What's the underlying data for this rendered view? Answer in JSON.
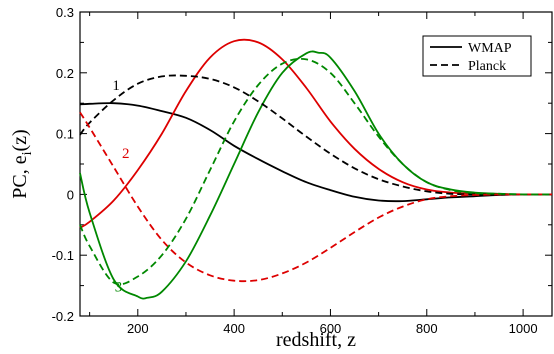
{
  "chart_data": {
    "type": "line",
    "xlabel": "redshift, z",
    "ylabel": "PC, e",
    "ylabel_sub": "i",
    "ylabel_suffix": "(z)",
    "xlim": [
      80,
      1060
    ],
    "ylim": [
      -0.2,
      0.3
    ],
    "xticks": [
      200,
      400,
      600,
      800,
      1000
    ],
    "yticks": [
      -0.2,
      -0.1,
      0,
      0.1,
      0.2,
      0.3
    ],
    "ytick_labels": [
      "-0.2",
      "-0.1",
      "0",
      "0.1",
      "0.2",
      "0.3"
    ],
    "legend": {
      "position": "top-right",
      "entries": [
        {
          "label": "WMAP",
          "style": "solid"
        },
        {
          "label": "Planck",
          "style": "dashed"
        }
      ]
    },
    "annotations": [
      {
        "text": "1",
        "x": 155,
        "y": 0.172,
        "color": "#000000"
      },
      {
        "text": "2",
        "x": 175,
        "y": 0.06,
        "color": "#dd0000"
      },
      {
        "text": "3",
        "x": 160,
        "y": -0.16,
        "color": "#008800"
      }
    ],
    "series": [
      {
        "pc": 1,
        "dataset": "WMAP",
        "style": "solid",
        "color": "#000000",
        "x": [
          80,
          100,
          150,
          200,
          250,
          300,
          350,
          400,
          450,
          500,
          550,
          600,
          650,
          700,
          750,
          800,
          850,
          900,
          950,
          1000,
          1060
        ],
        "y": [
          0.148,
          0.149,
          0.15,
          0.146,
          0.137,
          0.126,
          0.106,
          0.08,
          0.058,
          0.038,
          0.02,
          0.007,
          -0.004,
          -0.01,
          -0.011,
          -0.008,
          -0.005,
          -0.003,
          -0.001,
          0,
          0
        ]
      },
      {
        "pc": 2,
        "dataset": "WMAP",
        "style": "solid",
        "color": "#dd0000",
        "x": [
          80,
          100,
          150,
          200,
          250,
          300,
          350,
          400,
          450,
          500,
          550,
          600,
          650,
          700,
          750,
          800,
          850,
          900,
          950,
          1000,
          1060
        ],
        "y": [
          -0.055,
          -0.045,
          -0.01,
          0.04,
          0.1,
          0.17,
          0.225,
          0.252,
          0.25,
          0.222,
          0.175,
          0.12,
          0.075,
          0.042,
          0.02,
          0.008,
          0.003,
          0.001,
          0,
          0,
          0
        ]
      },
      {
        "pc": 3,
        "dataset": "WMAP",
        "style": "solid",
        "color": "#008800",
        "x": [
          80,
          100,
          150,
          200,
          220,
          250,
          300,
          350,
          400,
          450,
          500,
          550,
          575,
          600,
          650,
          700,
          750,
          800,
          850,
          900,
          950,
          1000,
          1060
        ],
        "y": [
          0.035,
          -0.03,
          -0.14,
          -0.168,
          -0.17,
          -0.16,
          -0.11,
          -0.035,
          0.05,
          0.135,
          0.2,
          0.232,
          0.233,
          0.225,
          0.17,
          0.1,
          0.05,
          0.02,
          0.008,
          0.003,
          0.001,
          0,
          0
        ]
      },
      {
        "pc": 1,
        "dataset": "Planck",
        "style": "dashed",
        "color": "#000000",
        "x": [
          80,
          100,
          150,
          200,
          250,
          300,
          350,
          400,
          450,
          500,
          550,
          600,
          650,
          700,
          750,
          800,
          850,
          900,
          950,
          1000,
          1060
        ],
        "y": [
          0.098,
          0.118,
          0.155,
          0.182,
          0.194,
          0.195,
          0.19,
          0.176,
          0.153,
          0.125,
          0.095,
          0.067,
          0.043,
          0.025,
          0.013,
          0.005,
          0.001,
          0,
          0,
          0,
          0
        ]
      },
      {
        "pc": 2,
        "dataset": "Planck",
        "style": "dashed",
        "color": "#dd0000",
        "x": [
          80,
          100,
          150,
          200,
          250,
          300,
          350,
          400,
          450,
          500,
          550,
          600,
          650,
          700,
          750,
          800,
          850,
          900,
          950,
          1000,
          1060
        ],
        "y": [
          0.135,
          0.11,
          0.045,
          -0.02,
          -0.075,
          -0.112,
          -0.133,
          -0.142,
          -0.141,
          -0.13,
          -0.112,
          -0.088,
          -0.062,
          -0.038,
          -0.02,
          -0.008,
          -0.003,
          -0.001,
          0,
          0,
          0
        ]
      },
      {
        "pc": 3,
        "dataset": "Planck",
        "style": "dashed",
        "color": "#008800",
        "x": [
          80,
          100,
          150,
          200,
          250,
          300,
          350,
          400,
          450,
          500,
          550,
          600,
          650,
          700,
          750,
          800,
          850,
          900,
          950,
          1000,
          1060
        ],
        "y": [
          -0.05,
          -0.085,
          -0.145,
          -0.135,
          -0.1,
          -0.04,
          0.04,
          0.12,
          0.18,
          0.215,
          0.222,
          0.2,
          0.15,
          0.095,
          0.05,
          0.02,
          0.007,
          0.002,
          0.001,
          0,
          0
        ]
      }
    ]
  }
}
